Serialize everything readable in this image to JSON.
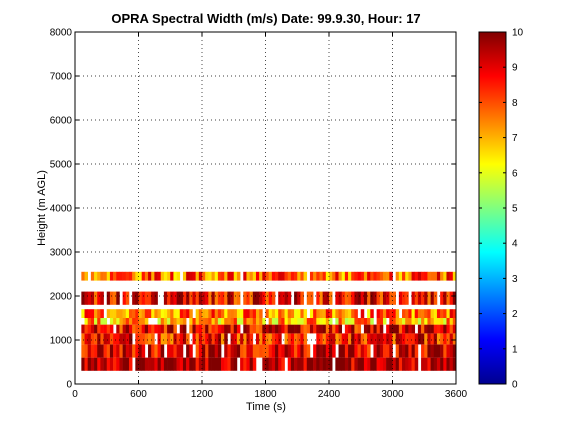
{
  "chart_data": {
    "type": "heatmap",
    "title": "OPRA Spectral Width (m/s)  Date: 99.9.30, Hour: 17",
    "xlabel": "Time (s)",
    "ylabel": "Height (m AGL)",
    "xlim": [
      0,
      3600
    ],
    "ylim": [
      0,
      8000
    ],
    "xticks": [
      0,
      600,
      1200,
      1800,
      2400,
      3000,
      3600
    ],
    "yticks": [
      0,
      1000,
      2000,
      3000,
      4000,
      5000,
      6000,
      7000,
      8000
    ],
    "grid": true,
    "colorbar": {
      "min": 0,
      "max": 10,
      "ticks": [
        0,
        1,
        2,
        3,
        4,
        5,
        6,
        7,
        8,
        9,
        10
      ],
      "colormap": "jet"
    },
    "bands": [
      {
        "y": [
          300,
          600
        ],
        "value": 9.8
      },
      {
        "y": [
          600,
          900
        ],
        "value": 9.2
      },
      {
        "y": [
          900,
          1150
        ],
        "value": 8.6
      },
      {
        "y": [
          1150,
          1350
        ],
        "value": 9.0
      },
      {
        "y": [
          1350,
          1500
        ],
        "value": 7.0
      },
      {
        "y": [
          1500,
          1700
        ],
        "value": 7.6
      },
      {
        "y": [
          1800,
          2100
        ],
        "value": 8.8
      },
      {
        "y": [
          2350,
          2550
        ],
        "value": 7.8
      }
    ]
  }
}
